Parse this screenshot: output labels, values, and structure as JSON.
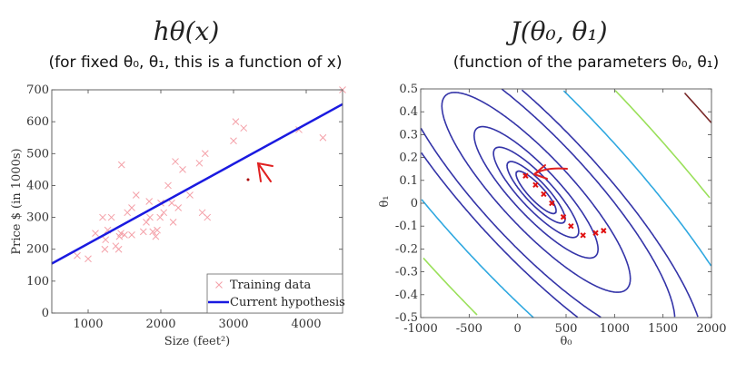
{
  "slide": {
    "left_title": "hθ(x)",
    "left_subtitle": "(for fixed θ₀, θ₁, this is a function of x)",
    "right_title": "J(θ₀, θ₁)",
    "right_subtitle": "(function of the parameters θ₀, θ₁)"
  },
  "chart_data": [
    {
      "type": "scatter",
      "xlabel": "Size (feet²)",
      "ylabel": "Price $ (in 1000s)",
      "xlim": [
        500,
        4500
      ],
      "ylim": [
        0,
        700
      ],
      "xticks": [
        1000,
        2000,
        3000,
        4000
      ],
      "yticks": [
        0,
        100,
        200,
        300,
        400,
        500,
        600,
        700
      ],
      "legend_placement": "bottom-right",
      "series": [
        {
          "name": "Training data",
          "marker": "x",
          "color": "#f4a0a8",
          "points": [
            [
              850,
              180
            ],
            [
              1000,
              170
            ],
            [
              1100,
              250
            ],
            [
              1200,
              300
            ],
            [
              1230,
              200
            ],
            [
              1240,
              230
            ],
            [
              1270,
              260
            ],
            [
              1320,
              300
            ],
            [
              1380,
              210
            ],
            [
              1420,
              200
            ],
            [
              1430,
              240
            ],
            [
              1450,
              250
            ],
            [
              1460,
              465
            ],
            [
              1500,
              245
            ],
            [
              1540,
              315
            ],
            [
              1600,
              245
            ],
            [
              1600,
              330
            ],
            [
              1660,
              370
            ],
            [
              1760,
              255
            ],
            [
              1800,
              285
            ],
            [
              1840,
              350
            ],
            [
              1850,
              300
            ],
            [
              1890,
              255
            ],
            [
              1930,
              240
            ],
            [
              1950,
              260
            ],
            [
              1990,
              300
            ],
            [
              2000,
              345
            ],
            [
              2040,
              315
            ],
            [
              2100,
              400
            ],
            [
              2150,
              345
            ],
            [
              2170,
              285
            ],
            [
              2200,
              475
            ],
            [
              2240,
              330
            ],
            [
              2300,
              450
            ],
            [
              2400,
              370
            ],
            [
              2530,
              470
            ],
            [
              2570,
              315
            ],
            [
              2610,
              500
            ],
            [
              2640,
              300
            ],
            [
              3000,
              540
            ],
            [
              3030,
              600
            ],
            [
              3140,
              580
            ],
            [
              3900,
              575
            ],
            [
              4230,
              550
            ],
            [
              4500,
              700
            ]
          ]
        },
        {
          "name": "Current hypothesis",
          "type": "line",
          "color": "#1a1ae0",
          "points": [
            [
              500,
              155
            ],
            [
              4500,
              655
            ]
          ]
        }
      ]
    },
    {
      "type": "contour",
      "xlabel": "θ₀",
      "ylabel": "θ₁",
      "xlim": [
        -1000,
        2000
      ],
      "ylim": [
        -0.5,
        0.5
      ],
      "xticks": [
        -1000,
        -500,
        0,
        500,
        1000,
        1500,
        2000
      ],
      "yticks": [
        -0.5,
        -0.4,
        -0.3,
        -0.2,
        -0.1,
        0,
        0.1,
        0.2,
        0.3,
        0.4,
        0.5
      ],
      "contour_colors": [
        "#3434a8",
        "#3434a8",
        "#3434a8",
        "#3434a8",
        "#3434a8",
        "#3434a8",
        "#3434a8",
        "#2fa8e0",
        "#9ae05a",
        "#7a2a2a"
      ],
      "descent_path": {
        "marker": "x",
        "color": "#e01010",
        "points": [
          [
            82,
            0.12
          ],
          [
            185,
            0.08
          ],
          [
            269,
            0.04
          ],
          [
            353,
            0.0
          ],
          [
            472,
            -0.06
          ],
          [
            550,
            -0.1
          ],
          [
            675,
            -0.14
          ],
          [
            805,
            -0.13
          ],
          [
            887,
            -0.12
          ]
        ]
      }
    }
  ]
}
